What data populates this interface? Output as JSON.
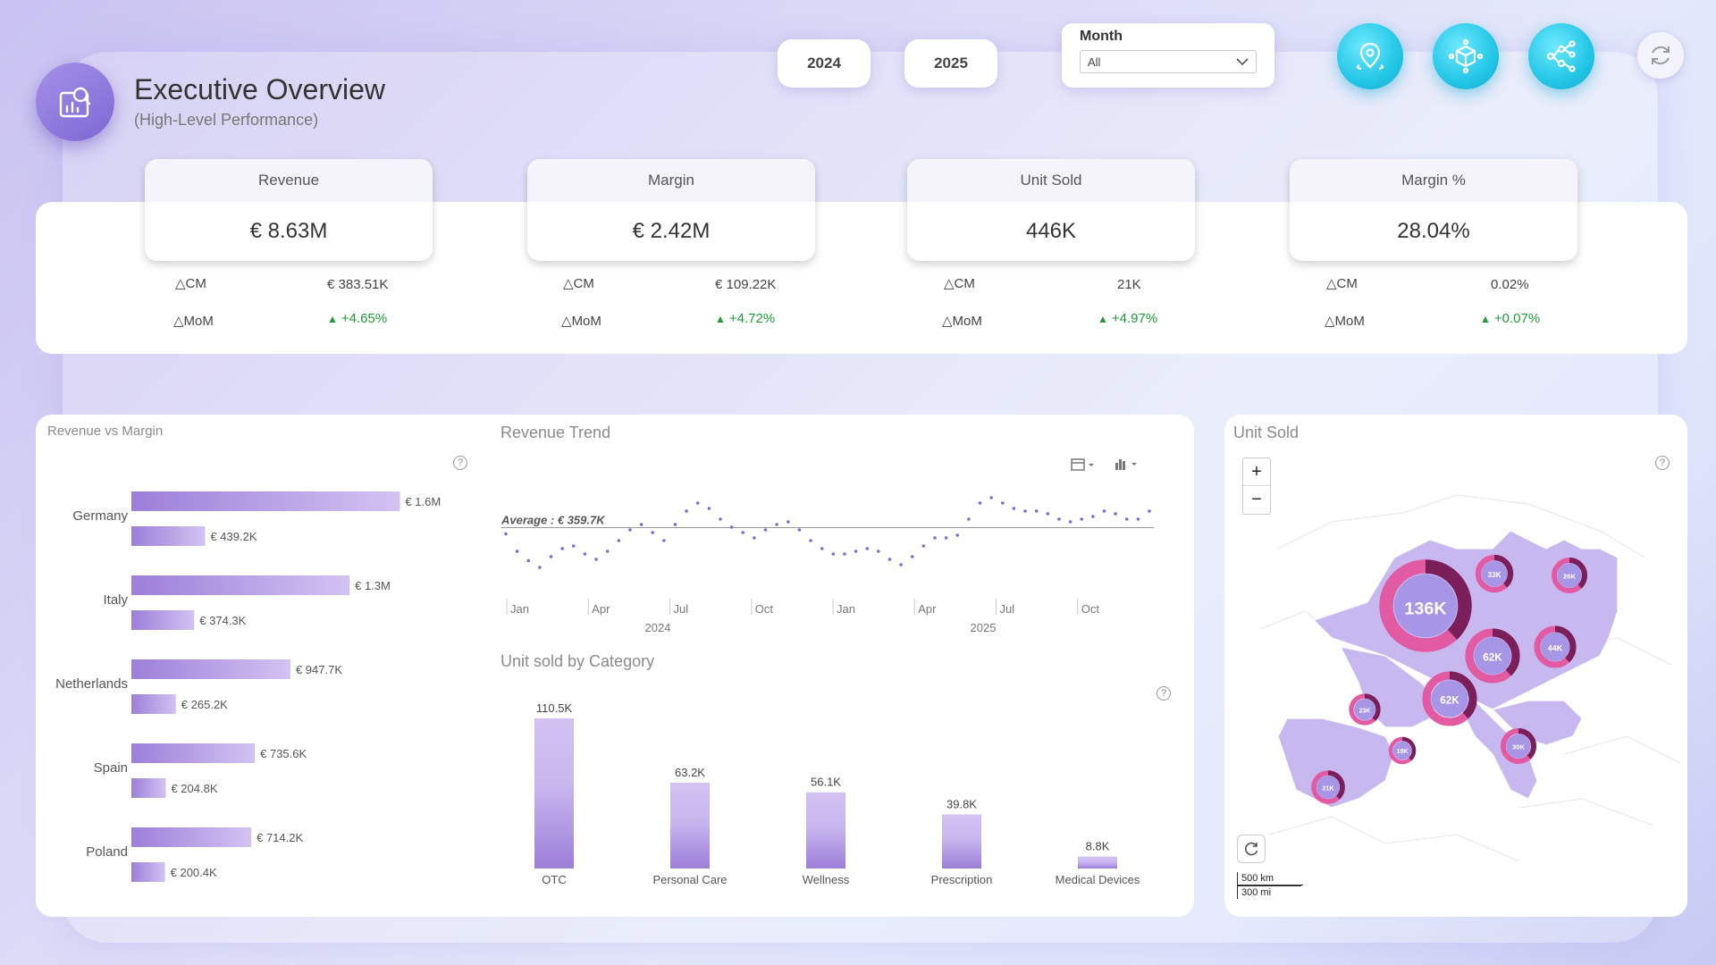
{
  "header": {
    "title": "Executive Overview",
    "subtitle": "(High-Level Performance)",
    "year_buttons": [
      "2024",
      "2025"
    ],
    "month_filter": {
      "label": "Month",
      "selected": "All"
    },
    "nav_icons": [
      "map-pin-icon",
      "cube-network-icon",
      "decomposition-tree-icon"
    ],
    "refresh_icon": "refresh-icon"
  },
  "kpis": [
    {
      "label": "Revenue",
      "value": "€ 8.63M",
      "cm_label": "△CM",
      "cm_value": "€ 383.51K",
      "mom_label": "△MoM",
      "mom_value": "+4.65%"
    },
    {
      "label": "Margin",
      "value": "€ 2.42M",
      "cm_label": "△CM",
      "cm_value": "€ 109.22K",
      "mom_label": "△MoM",
      "mom_value": "+4.72%"
    },
    {
      "label": "Unit Sold",
      "value": "446K",
      "cm_label": "△CM",
      "cm_value": "21K",
      "mom_label": "△MoM",
      "mom_value": "+4.97%"
    },
    {
      "label": "Margin %",
      "value": "28.04%",
      "cm_label": "△CM",
      "cm_value": "0.02%",
      "mom_label": "△MoM",
      "mom_value": "+0.07%"
    }
  ],
  "colors": {
    "accent": "#8e79da",
    "up": "#1c9c35",
    "cyan": "#23c6e6",
    "map_fill": "#c8b8f0",
    "donut_dark": "#7a1f5a",
    "donut_pink": "#e25aa2"
  },
  "chart_data": [
    {
      "type": "bar",
      "title": "Revenue vs Margin",
      "orientation": "horizontal",
      "categories": [
        "Germany",
        "Italy",
        "Netherlands",
        "Spain",
        "Poland"
      ],
      "series": [
        {
          "values": [
            1600000,
            1300000,
            947700,
            735600,
            714200
          ],
          "labels": [
            "€ 1.6M",
            "€ 1.3M",
            "€ 947.7K",
            "€ 735.6K",
            "€ 714.2K"
          ]
        },
        {
          "values": [
            439200,
            374300,
            265200,
            204800,
            200400
          ],
          "labels": [
            "€ 439.2K",
            "€ 374.3K",
            "€ 265.2K",
            "€ 204.8K",
            "€ 200.4K"
          ]
        }
      ],
      "xlim": [
        0,
        1800000
      ]
    },
    {
      "type": "scatter",
      "title": "Revenue Trend",
      "average_label": "Average : € 359.7K",
      "average": 359.7,
      "tick_labels": [
        "Jan",
        "Apr",
        "Jul",
        "Oct",
        "Jan",
        "Apr",
        "Jul",
        "Oct"
      ],
      "year_labels": [
        "2024",
        "2025"
      ],
      "y": [
        355,
        342,
        335,
        330,
        338,
        344,
        346,
        340,
        336,
        342,
        350,
        358,
        362,
        356,
        350,
        362,
        372,
        378,
        374,
        366,
        360,
        356,
        352,
        358,
        362,
        364,
        358,
        350,
        344,
        340,
        340,
        342,
        344,
        342,
        336,
        332,
        338,
        346,
        352,
        352,
        354,
        366,
        378,
        382,
        378,
        374,
        372,
        372,
        370,
        366,
        364,
        366,
        368,
        372,
        370,
        366,
        366,
        372
      ],
      "ylim": [
        320,
        400
      ]
    },
    {
      "type": "bar",
      "title": "Unit sold by Category",
      "categories": [
        "OTC",
        "Personal Care",
        "Wellness",
        "Prescription",
        "Medical Devices"
      ],
      "values": [
        110.5,
        63.2,
        56.1,
        39.8,
        8.8
      ],
      "labels": [
        "110.5K",
        "63.2K",
        "56.1K",
        "39.8K",
        "8.8K"
      ],
      "ylim": [
        0,
        120
      ]
    }
  ],
  "map": {
    "title": "Unit Sold",
    "zoom_in": "+",
    "zoom_out": "−",
    "scale_km": "500 km",
    "scale_mi": "300 mi",
    "bubbles": [
      "136K",
      "33K",
      "26K",
      "62K",
      "44K",
      "62K",
      "23K",
      "30K",
      "19K",
      "21K"
    ]
  }
}
